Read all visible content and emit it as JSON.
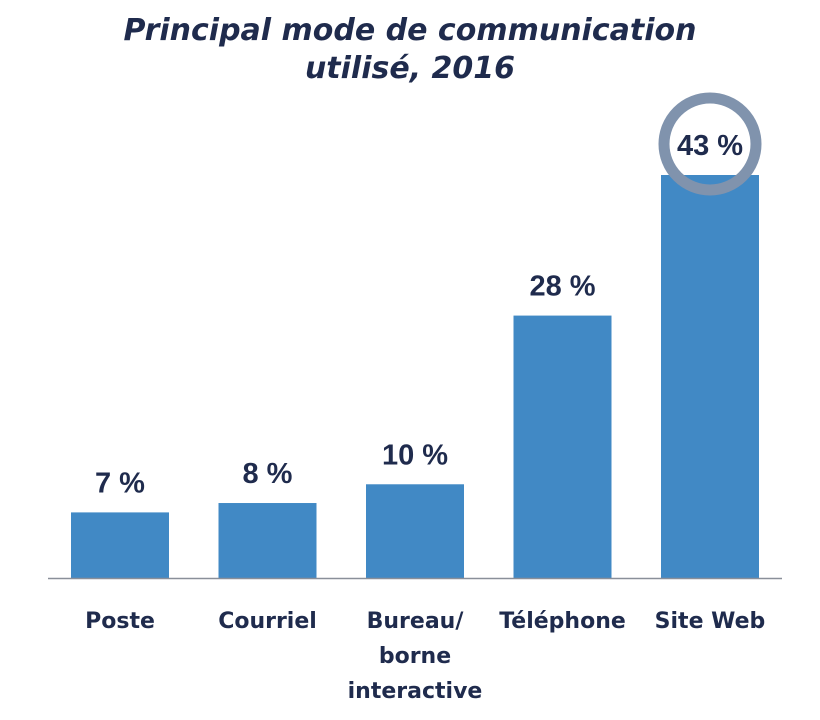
{
  "chart_data": {
    "type": "bar",
    "title": [
      "Principal mode de communication",
      "utilisé, 2016"
    ],
    "categories": [
      [
        "Poste"
      ],
      [
        "Courriel"
      ],
      [
        "Bureau/",
        "borne",
        "interactive"
      ],
      [
        "Téléphone"
      ],
      [
        "Site Web"
      ]
    ],
    "values": [
      7,
      8,
      10,
      28,
      43
    ],
    "data_labels": [
      "7 %",
      "8 %",
      "10 %",
      "28 %",
      "43 %"
    ],
    "highlight_index": 4,
    "ylim": [
      0,
      43
    ],
    "grid": false,
    "colors": {
      "bar": "#4189c5",
      "text": "#1f2b4d",
      "axis": "#8a8f99",
      "highlight_ring": "#8093ad"
    }
  }
}
